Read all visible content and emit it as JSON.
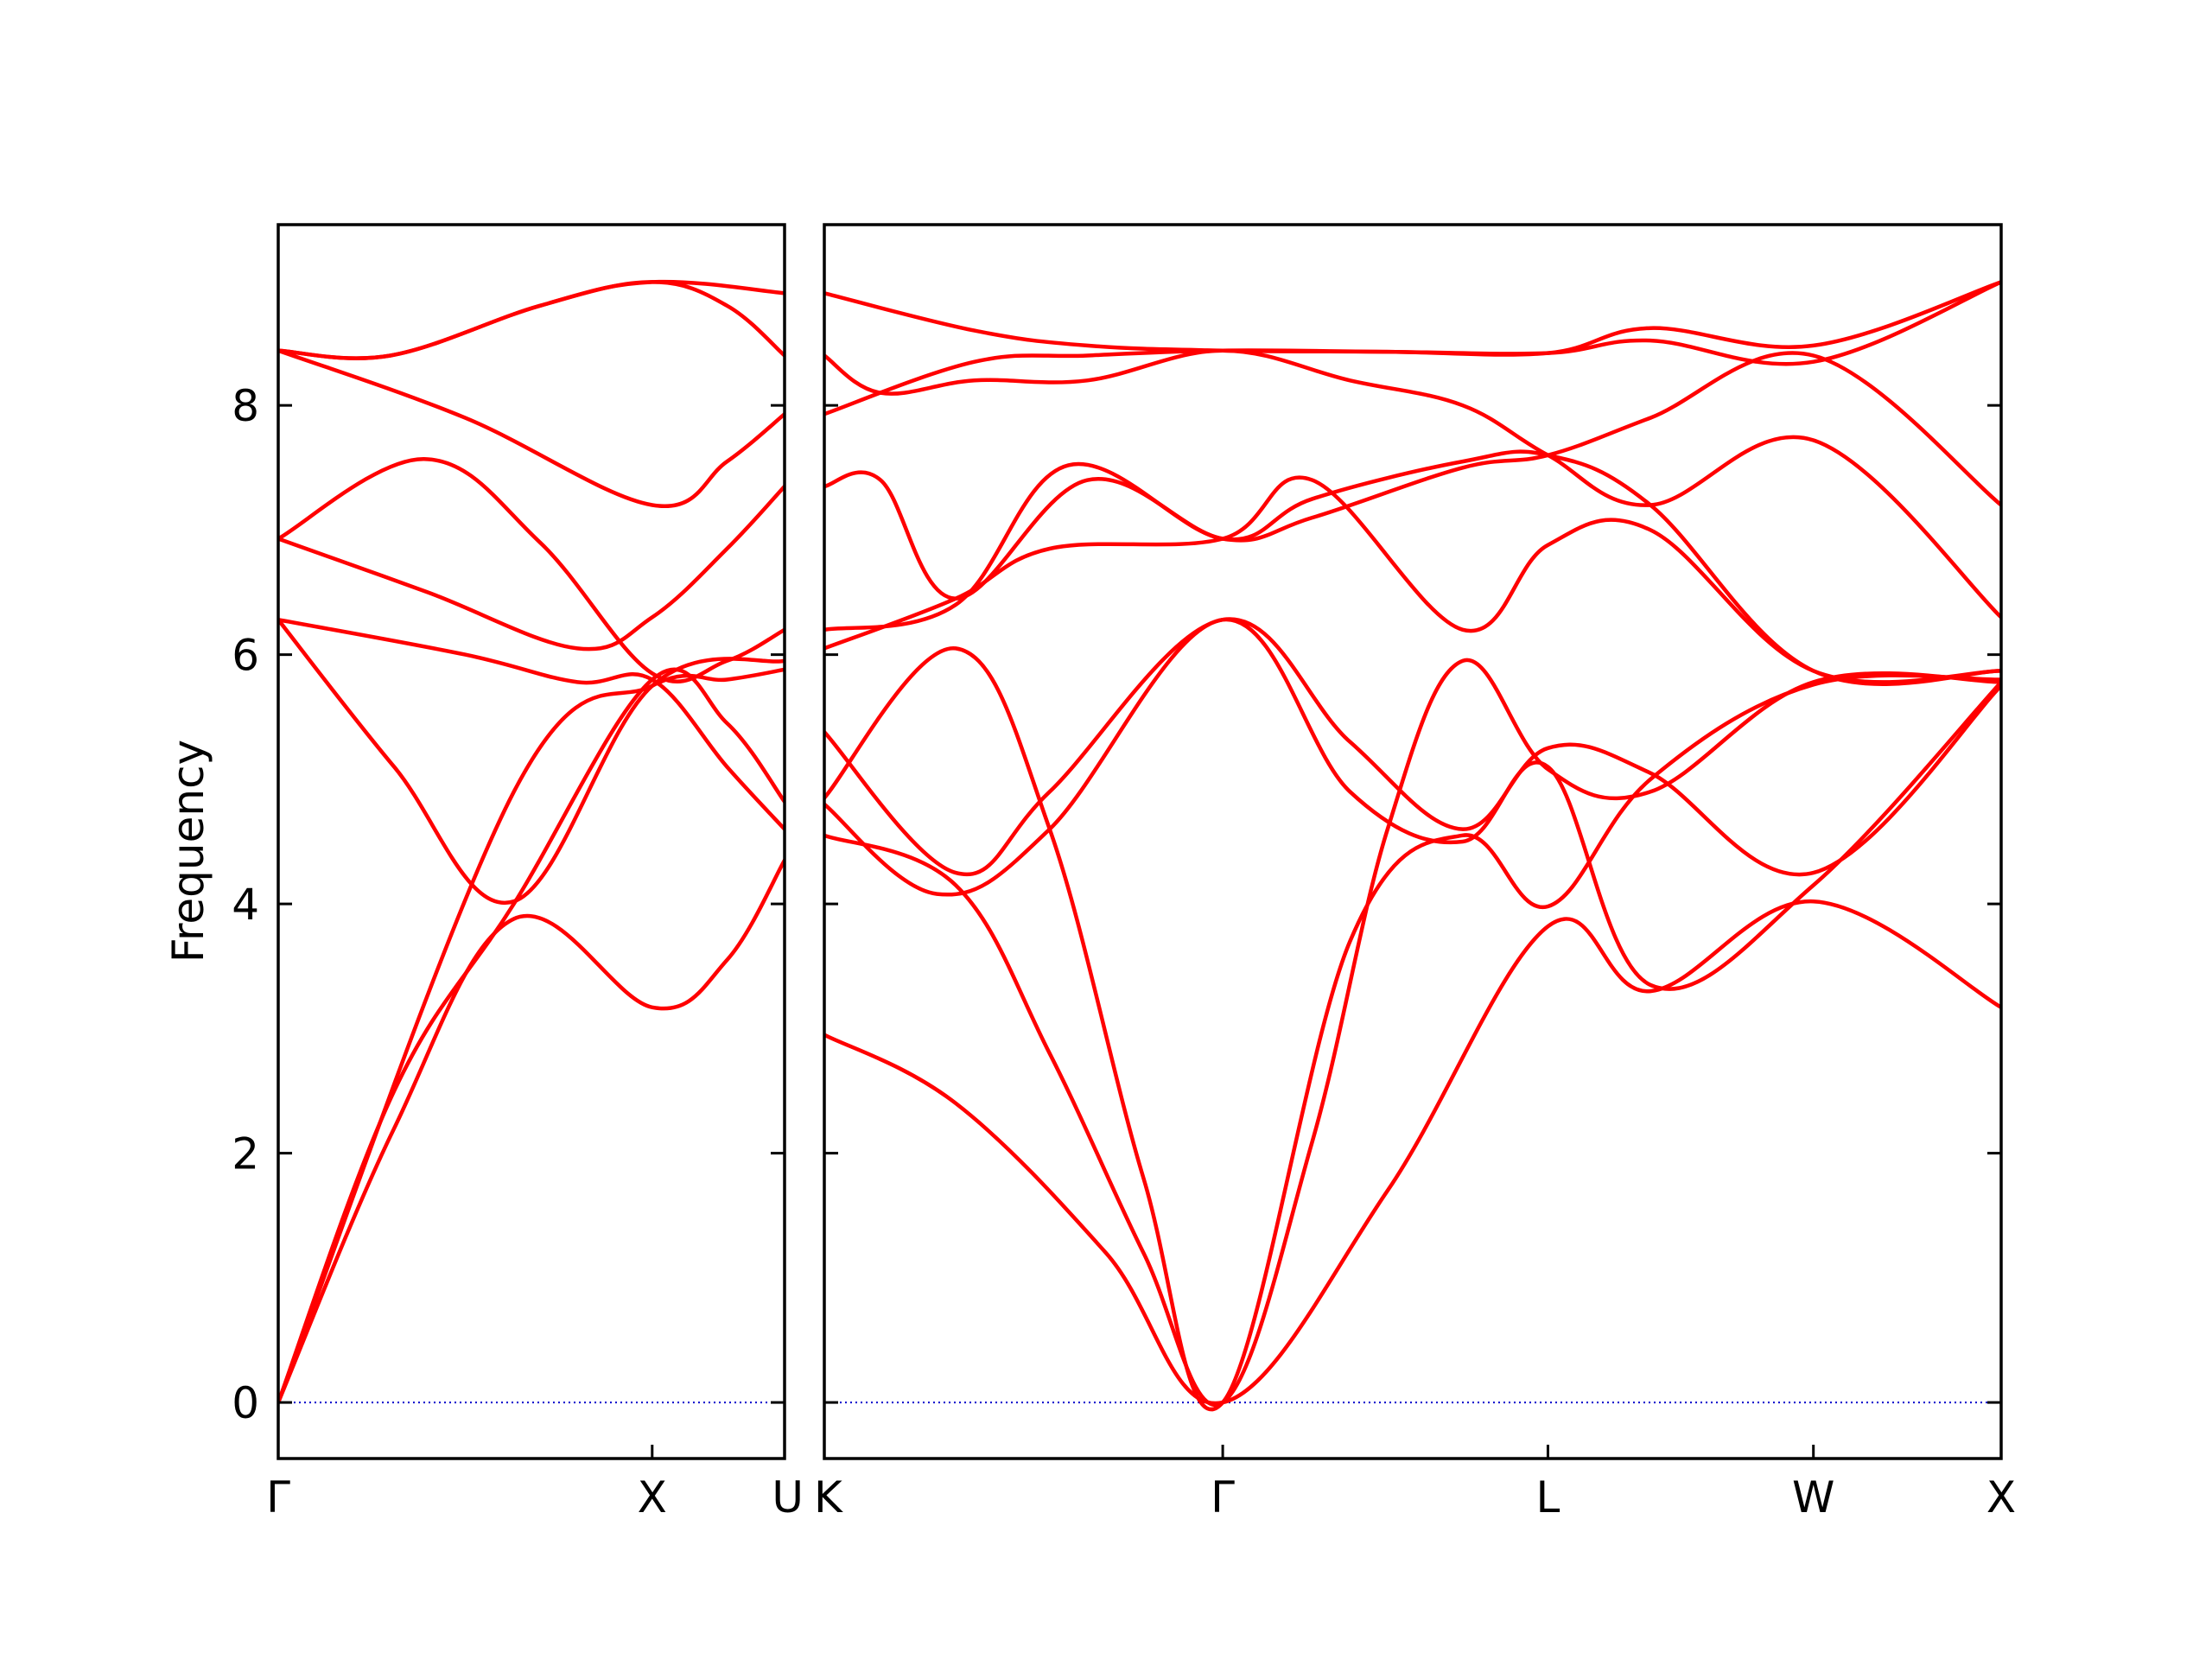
{
  "chart_data": {
    "type": "line",
    "ylabel": "Frequency",
    "ylim": [
      -0.45,
      9.45
    ],
    "yticks": [
      0,
      2,
      4,
      6,
      8
    ],
    "grid": false,
    "legend": "none",
    "colors": {
      "bands": "#ff0000",
      "zero_line": "#0000cc",
      "axes": "#000000"
    },
    "panels": [
      {
        "path_labels": [
          "Γ",
          "X",
          "U"
        ],
        "path_label_positions": [
          0.0,
          1.0,
          1.354
        ],
        "xlim": [
          0.0,
          1.354
        ],
        "bands": [
          {
            "name": "",
            "x": [
              0.0,
              0.31,
              0.63,
              1.0,
              1.2,
              1.354
            ],
            "y": [
              0.0,
              2.5,
              4.0,
              5.8,
              5.45,
              4.82
            ]
          },
          {
            "name": "",
            "x": [
              0.0,
              0.31,
              0.63,
              1.0,
              1.2,
              1.354
            ],
            "y": [
              0.0,
              2.2,
              3.88,
              3.17,
              3.55,
              4.35
            ]
          },
          {
            "name": "",
            "x": [
              0.0,
              0.63,
              1.0,
              1.2,
              1.354
            ],
            "y": [
              0.0,
              4.9,
              5.75,
              5.8,
              5.88
            ]
          },
          {
            "name": "",
            "x": [
              0.0,
              0.31,
              0.63,
              1.0,
              1.354
            ],
            "y": [
              6.28,
              5.1,
              4.02,
              5.75,
              5.95
            ]
          },
          {
            "name": "",
            "x": [
              0.0,
              0.5,
              0.8,
              1.0,
              1.2,
              1.354
            ],
            "y": [
              6.28,
              6.0,
              5.78,
              5.8,
              5.1,
              4.6
            ]
          },
          {
            "name": "",
            "x": [
              0.0,
              0.4,
              0.8,
              1.0,
              1.2,
              1.354
            ],
            "y": [
              6.93,
              6.5,
              6.05,
              6.3,
              6.85,
              7.35
            ]
          },
          {
            "name": "",
            "x": [
              0.0,
              0.39,
              0.7,
              1.0,
              1.2,
              1.354
            ],
            "y": [
              6.93,
              7.57,
              6.9,
              5.85,
              5.95,
              6.2
            ]
          },
          {
            "name": "",
            "x": [
              0.0,
              0.5,
              1.0,
              1.2,
              1.354
            ],
            "y": [
              8.44,
              7.9,
              7.2,
              7.55,
              7.93
            ]
          },
          {
            "name": "",
            "x": [
              0.0,
              0.3,
              0.7,
              1.0,
              1.354
            ],
            "y": [
              8.44,
              8.4,
              8.8,
              8.99,
              8.9
            ]
          },
          {
            "name": "",
            "x": [
              0.0,
              0.3,
              0.7,
              1.0,
              1.2,
              1.354
            ],
            "y": [
              8.44,
              8.4,
              8.8,
              8.99,
              8.8,
              8.4
            ]
          }
        ]
      },
      {
        "path_labels": [
          "K",
          "Γ",
          "L",
          "W",
          "X"
        ],
        "path_label_positions": [
          0.0,
          1.061,
          1.927,
          2.634,
          3.134
        ],
        "xlim": [
          0.0,
          3.134
        ],
        "bands": [
          {
            "name": "",
            "x": [
              0.0,
              0.35,
              0.75,
              1.061,
              1.5,
              1.927,
              2.2,
              2.634,
              3.134
            ],
            "y": [
              2.95,
              2.4,
              1.2,
              0.0,
              1.7,
              3.82,
              3.3,
              4.02,
              3.17
            ]
          },
          {
            "name": "",
            "x": [
              0.0,
              0.35,
              0.6,
              0.85,
              1.061,
              1.3,
              1.5,
              1.7,
              1.927,
              2.2,
              2.634,
              3.134
            ],
            "y": [
              4.55,
              4.15,
              2.8,
              1.2,
              0.0,
              2.1,
              4.6,
              5.95,
              5.08,
              4.9,
              5.78,
              5.78
            ]
          },
          {
            "name": "",
            "x": [
              0.0,
              0.35,
              0.6,
              0.85,
              1.061,
              1.4,
              1.7,
              1.927,
              2.2,
              2.634,
              3.134
            ],
            "y": [
              4.85,
              6.05,
              4.6,
              1.8,
              0.0,
              3.7,
              4.55,
              3.98,
              5.0,
              5.76,
              5.8
            ]
          },
          {
            "name": "",
            "x": [
              0.0,
              0.35,
              0.6,
              1.061,
              1.4,
              1.7,
              1.927,
              2.2,
              2.634,
              3.134
            ],
            "y": [
              5.38,
              4.25,
              4.9,
              6.28,
              5.3,
              4.6,
              5.25,
              5.05,
              4.25,
              5.75
            ]
          },
          {
            "name": "",
            "x": [
              0.0,
              0.3,
              0.6,
              1.061,
              1.4,
              1.7,
              1.927,
              2.2,
              2.634,
              3.134
            ],
            "y": [
              4.8,
              4.08,
              4.6,
              6.28,
              4.9,
              4.5,
              5.1,
              3.35,
              4.15,
              5.78
            ]
          },
          {
            "name": "",
            "x": [
              0.0,
              0.35,
              0.6,
              1.061,
              1.3,
              1.7,
              1.927,
              2.2,
              2.634,
              3.134
            ],
            "y": [
              6.05,
              6.45,
              6.85,
              6.93,
              7.4,
              6.2,
              6.88,
              7.0,
              5.87,
              5.87
            ]
          },
          {
            "name": "",
            "x": [
              0.0,
              0.35,
              0.65,
              1.061,
              1.3,
              1.7,
              1.927,
              2.2,
              2.634,
              3.134
            ],
            "y": [
              6.2,
              6.4,
              7.52,
              6.93,
              7.25,
              7.55,
              7.6,
              7.2,
              5.87,
              5.87
            ]
          },
          {
            "name": "",
            "x": [
              0.0,
              0.15,
              0.35,
              0.7,
              1.061,
              1.3,
              1.7,
              1.927,
              2.2,
              2.634,
              3.134
            ],
            "y": [
              7.35,
              7.4,
              6.45,
              7.4,
              6.93,
              7.1,
              7.5,
              7.6,
              7.9,
              8.4,
              7.2
            ]
          },
          {
            "name": "",
            "x": [
              0.0,
              0.15,
              0.4,
              0.7,
              1.061,
              1.4,
              1.7,
              1.927,
              2.2,
              2.634,
              3.134
            ],
            "y": [
              8.4,
              8.1,
              8.2,
              8.2,
              8.44,
              8.2,
              8.0,
              7.6,
              7.2,
              7.72,
              6.3
            ]
          },
          {
            "name": "",
            "x": [
              0.0,
              0.4,
              0.7,
              1.061,
              1.5,
              1.927,
              2.2,
              2.634,
              3.134
            ],
            "y": [
              7.93,
              8.35,
              8.4,
              8.44,
              8.43,
              8.42,
              8.52,
              8.35,
              8.99
            ]
          },
          {
            "name": "",
            "x": [
              0.0,
              0.4,
              0.7,
              1.061,
              1.5,
              1.927,
              2.2,
              2.634,
              3.134
            ],
            "y": [
              8.9,
              8.6,
              8.48,
              8.44,
              8.43,
              8.42,
              8.62,
              8.48,
              8.99
            ]
          }
        ]
      }
    ]
  }
}
